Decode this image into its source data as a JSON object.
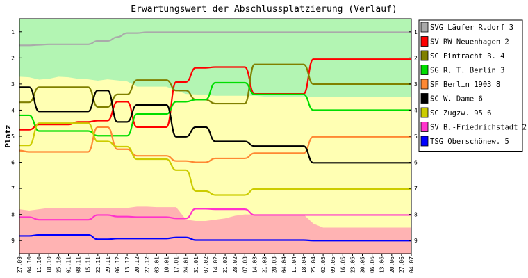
{
  "chart_data": {
    "type": "line",
    "title": "Erwartungswert der Abschlussplatzierung (Verlauf)",
    "ylabel": "Platz",
    "ylim": [
      0.5,
      9.5
    ],
    "yticks": [
      1,
      2,
      3,
      4,
      5,
      6,
      7,
      8,
      9
    ],
    "y_inverted": true,
    "grid": false,
    "legend_position": "right",
    "categories": [
      "27.09",
      "04.10",
      "11.10",
      "18.10",
      "25.10",
      "01.11",
      "08.11",
      "15.11",
      "22.11",
      "29.11",
      "06.12",
      "13.12",
      "20.12",
      "27.12",
      "03.01",
      "10.01",
      "17.01",
      "24.01",
      "31.01",
      "07.02",
      "14.02",
      "21.02",
      "28.02",
      "07.03",
      "14.03",
      "21.03",
      "28.03",
      "04.04",
      "11.04",
      "18.04",
      "25.04",
      "02.05",
      "09.05",
      "16.05",
      "23.05",
      "30.05",
      "06.06",
      "13.06",
      "20.06",
      "27.06",
      "04.07"
    ],
    "zones": [
      {
        "color": "#b3f5b3",
        "upper": [
          0.5,
          0.5,
          0.5,
          0.5,
          0.5,
          0.5,
          0.5,
          0.5,
          0.5,
          0.5,
          0.5,
          0.5,
          0.5,
          0.5,
          0.5,
          0.5,
          0.5,
          0.5,
          0.5,
          0.5,
          0.5,
          0.5,
          0.5,
          0.5,
          0.5,
          0.5,
          0.5,
          0.5,
          0.5,
          0.5,
          0.5,
          0.5,
          0.5,
          0.5,
          0.5,
          0.5,
          0.5,
          0.5,
          0.5,
          0.5,
          0.5
        ]
      },
      {
        "color": "#ffffb3",
        "upper": [
          2.72,
          2.74,
          2.83,
          2.8,
          2.72,
          2.74,
          2.8,
          2.82,
          2.87,
          2.82,
          2.86,
          2.9,
          3.1,
          3.1,
          3.1,
          3.1,
          3.25,
          3.38,
          3.4,
          3.42,
          3.45,
          3.45,
          3.45,
          3.45,
          3.45,
          3.48,
          3.48,
          3.48,
          3.48,
          3.48,
          3.5,
          3.5,
          3.5,
          3.5,
          3.5,
          3.5,
          3.5,
          3.5,
          3.5,
          3.5,
          3.5
        ]
      },
      {
        "color": "#ffb3b3",
        "upper": [
          7.8,
          7.85,
          7.8,
          7.75,
          7.75,
          7.75,
          7.75,
          7.75,
          7.75,
          7.75,
          7.75,
          7.75,
          7.7,
          7.7,
          7.72,
          7.72,
          7.72,
          8.2,
          8.25,
          8.25,
          8.2,
          8.15,
          8.05,
          8.0,
          8.0,
          8.0,
          8.0,
          8.0,
          8.0,
          8.0,
          8.35,
          8.5,
          8.5,
          8.5,
          8.5,
          8.5,
          8.5,
          8.5,
          8.5,
          8.5,
          8.5
        ]
      }
    ],
    "series": [
      {
        "name": "SVG Läufer R.dorf 3",
        "color": "#aaaaaa",
        "values": [
          1.52,
          1.52,
          1.5,
          1.48,
          1.48,
          1.48,
          1.48,
          1.48,
          1.35,
          1.35,
          1.2,
          1.05,
          1.05,
          1.02,
          1.02,
          1.02,
          1.02,
          1.02,
          1.02,
          1.02,
          1.02,
          1.02,
          1.02,
          1.02,
          1.02,
          1.02,
          1.02,
          1.02,
          1.02,
          1.02,
          1.02,
          1.02,
          1.02,
          1.02,
          1.02,
          1.02,
          1.02,
          1.02,
          1.02,
          1.02,
          1.02
        ]
      },
      {
        "name": "SV RW Neuenhagen 2",
        "color": "#ff0000",
        "values": [
          4.75,
          4.75,
          4.55,
          4.55,
          4.55,
          4.55,
          4.45,
          4.45,
          4.4,
          4.4,
          3.68,
          3.68,
          4.65,
          4.65,
          4.65,
          4.65,
          2.92,
          2.92,
          2.38,
          2.38,
          2.35,
          2.35,
          2.35,
          2.35,
          3.38,
          3.38,
          3.38,
          3.38,
          3.38,
          3.38,
          2.05,
          2.05,
          2.05,
          2.05,
          2.05,
          2.05,
          2.05,
          2.05,
          2.05,
          2.05,
          2.05
        ]
      },
      {
        "name": "SC Eintracht B. 4",
        "color": "#808000",
        "values": [
          3.7,
          3.7,
          3.12,
          3.12,
          3.12,
          3.12,
          3.12,
          3.12,
          3.88,
          3.88,
          3.4,
          3.4,
          2.85,
          2.85,
          2.85,
          2.85,
          3.25,
          3.25,
          3.6,
          3.6,
          3.75,
          3.75,
          3.75,
          3.75,
          2.25,
          2.25,
          2.25,
          2.25,
          2.25,
          2.25,
          3.0,
          3.0,
          3.0,
          3.0,
          3.0,
          3.0,
          3.0,
          3.0,
          3.0,
          3.0,
          3.0
        ]
      },
      {
        "name": "SG R. T. Berlin 3",
        "color": "#00dd00",
        "values": [
          4.2,
          4.2,
          4.8,
          4.8,
          4.8,
          4.8,
          4.8,
          4.8,
          4.98,
          4.98,
          4.98,
          4.98,
          4.15,
          4.15,
          4.15,
          4.15,
          3.68,
          3.68,
          3.6,
          3.6,
          2.95,
          2.95,
          2.95,
          2.95,
          3.4,
          3.4,
          3.4,
          3.4,
          3.4,
          3.4,
          4.0,
          4.0,
          4.0,
          4.0,
          4.0,
          4.0,
          4.0,
          4.0,
          4.0,
          4.0,
          4.0
        ]
      },
      {
        "name": "SF Berlin 1903 8",
        "color": "#ff8833",
        "values": [
          5.55,
          5.6,
          5.6,
          5.6,
          5.6,
          5.6,
          5.6,
          5.6,
          4.65,
          4.65,
          5.5,
          5.5,
          5.75,
          5.75,
          5.75,
          5.75,
          5.95,
          5.95,
          6.0,
          6.0,
          5.85,
          5.85,
          5.85,
          5.85,
          5.65,
          5.65,
          5.65,
          5.65,
          5.65,
          5.65,
          5.02,
          5.02,
          5.02,
          5.02,
          5.02,
          5.02,
          5.02,
          5.02,
          5.02,
          5.02,
          5.02
        ]
      },
      {
        "name": "SC W. Dame 6",
        "color": "#000000",
        "values": [
          3.12,
          3.12,
          4.05,
          4.05,
          4.05,
          4.05,
          4.05,
          4.05,
          3.25,
          3.25,
          4.45,
          4.45,
          3.8,
          3.8,
          3.8,
          3.8,
          5.02,
          5.02,
          4.65,
          4.65,
          5.2,
          5.2,
          5.2,
          5.2,
          5.38,
          5.38,
          5.38,
          5.38,
          5.38,
          5.38,
          6.02,
          6.02,
          6.02,
          6.02,
          6.02,
          6.02,
          6.02,
          6.02,
          6.02,
          6.02,
          6.02
        ]
      },
      {
        "name": "SC Zugzw. 95 6",
        "color": "#cccc00",
        "values": [
          5.35,
          5.35,
          4.5,
          4.5,
          4.5,
          4.5,
          4.5,
          4.5,
          5.2,
          5.2,
          5.4,
          5.4,
          5.88,
          5.88,
          5.88,
          5.88,
          6.3,
          6.3,
          7.1,
          7.1,
          7.25,
          7.25,
          7.25,
          7.25,
          7.02,
          7.02,
          7.02,
          7.02,
          7.02,
          7.02,
          7.02,
          7.02,
          7.02,
          7.02,
          7.02,
          7.02,
          7.02,
          7.02,
          7.02,
          7.02,
          7.02
        ]
      },
      {
        "name": "SV B.-Friedrichstadt 2",
        "color": "#ff33cc",
        "values": [
          8.1,
          8.1,
          8.2,
          8.2,
          8.2,
          8.2,
          8.2,
          8.2,
          8.02,
          8.02,
          8.08,
          8.08,
          8.1,
          8.1,
          8.1,
          8.1,
          8.15,
          8.15,
          7.78,
          7.78,
          7.8,
          7.8,
          7.8,
          7.8,
          8.02,
          8.02,
          8.02,
          8.02,
          8.02,
          8.02,
          8.02,
          8.02,
          8.02,
          8.02,
          8.02,
          8.02,
          8.02,
          8.02,
          8.02,
          8.02,
          8.02
        ]
      },
      {
        "name": "TSG Oberschönew. 5",
        "color": "#0000ff",
        "values": [
          8.82,
          8.82,
          8.78,
          8.78,
          8.78,
          8.78,
          8.78,
          8.78,
          8.95,
          8.95,
          8.92,
          8.92,
          8.92,
          8.92,
          8.92,
          8.92,
          8.88,
          8.88,
          8.98,
          8.98,
          8.98,
          8.98,
          8.98,
          8.98,
          8.98,
          8.98,
          8.98,
          8.98,
          8.98,
          8.98,
          9.0,
          9.0,
          9.0,
          9.0,
          9.0,
          9.0,
          9.0,
          9.0,
          9.0,
          9.0,
          9.0
        ]
      }
    ]
  }
}
